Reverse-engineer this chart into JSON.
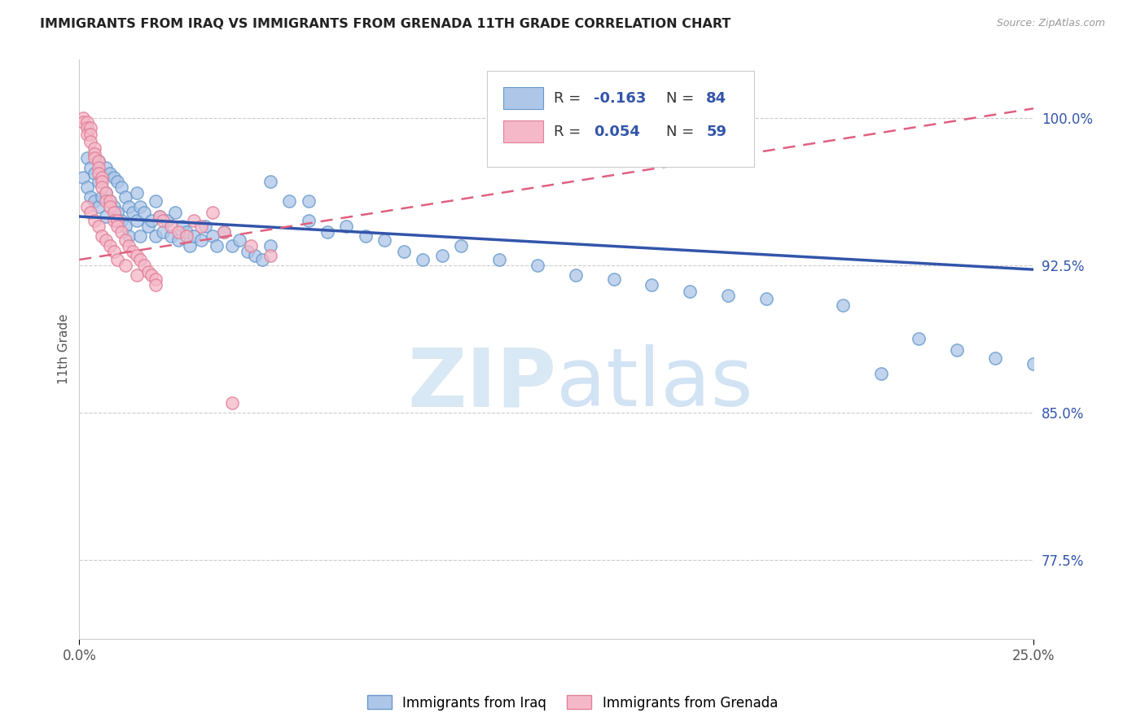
{
  "title": "IMMIGRANTS FROM IRAQ VS IMMIGRANTS FROM GRENADA 11TH GRADE CORRELATION CHART",
  "source": "Source: ZipAtlas.com",
  "ylabel": "11th Grade",
  "ytick_labels": [
    "77.5%",
    "85.0%",
    "92.5%",
    "100.0%"
  ],
  "ytick_values": [
    0.775,
    0.85,
    0.925,
    1.0
  ],
  "xlim": [
    0.0,
    0.25
  ],
  "ylim": [
    0.735,
    1.03
  ],
  "xtick_positions": [
    0.0,
    0.25
  ],
  "xtick_labels": [
    "0.0%",
    "25.0%"
  ],
  "color_iraq": "#aec6e8",
  "color_iraq_edge": "#6699cc",
  "color_iraq_line": "#3355aa",
  "color_grenada": "#f5b8c8",
  "color_grenada_edge": "#e08098",
  "color_grenada_line": "#e06080",
  "watermark_zip": "ZIP",
  "watermark_atlas": "atlas",
  "watermark_color": "#d8e8f5",
  "iraq_line_x0": 0.0,
  "iraq_line_y0": 0.95,
  "iraq_line_x1": 0.25,
  "iraq_line_y1": 0.923,
  "grenada_line_x0": 0.0,
  "grenada_line_y0": 0.928,
  "grenada_line_x1": 0.25,
  "grenada_line_y1": 1.005,
  "iraq_x": [
    0.001,
    0.002,
    0.002,
    0.003,
    0.003,
    0.004,
    0.004,
    0.005,
    0.005,
    0.005,
    0.006,
    0.006,
    0.007,
    0.007,
    0.007,
    0.008,
    0.008,
    0.009,
    0.009,
    0.01,
    0.01,
    0.011,
    0.011,
    0.012,
    0.012,
    0.013,
    0.013,
    0.014,
    0.015,
    0.015,
    0.016,
    0.016,
    0.017,
    0.018,
    0.019,
    0.02,
    0.02,
    0.021,
    0.022,
    0.023,
    0.024,
    0.025,
    0.026,
    0.027,
    0.028,
    0.029,
    0.03,
    0.032,
    0.033,
    0.035,
    0.036,
    0.038,
    0.04,
    0.042,
    0.044,
    0.046,
    0.048,
    0.05,
    0.055,
    0.06,
    0.065,
    0.07,
    0.075,
    0.08,
    0.085,
    0.09,
    0.095,
    0.1,
    0.11,
    0.12,
    0.13,
    0.14,
    0.15,
    0.16,
    0.17,
    0.18,
    0.2,
    0.21,
    0.22,
    0.23,
    0.24,
    0.25,
    0.05,
    0.06
  ],
  "iraq_y": [
    0.97,
    0.98,
    0.965,
    0.975,
    0.96,
    0.972,
    0.958,
    0.968,
    0.978,
    0.955,
    0.97,
    0.96,
    0.975,
    0.962,
    0.95,
    0.972,
    0.958,
    0.97,
    0.955,
    0.968,
    0.952,
    0.965,
    0.948,
    0.96,
    0.945,
    0.955,
    0.94,
    0.952,
    0.962,
    0.948,
    0.955,
    0.94,
    0.952,
    0.945,
    0.948,
    0.958,
    0.94,
    0.95,
    0.942,
    0.948,
    0.94,
    0.952,
    0.938,
    0.945,
    0.942,
    0.935,
    0.94,
    0.938,
    0.945,
    0.94,
    0.935,
    0.942,
    0.935,
    0.938,
    0.932,
    0.93,
    0.928,
    0.935,
    0.958,
    0.948,
    0.942,
    0.945,
    0.94,
    0.938,
    0.932,
    0.928,
    0.93,
    0.935,
    0.928,
    0.925,
    0.92,
    0.918,
    0.915,
    0.912,
    0.91,
    0.908,
    0.905,
    0.87,
    0.888,
    0.882,
    0.878,
    0.875,
    0.968,
    0.958
  ],
  "grenada_x": [
    0.001,
    0.001,
    0.002,
    0.002,
    0.002,
    0.003,
    0.003,
    0.003,
    0.004,
    0.004,
    0.004,
    0.005,
    0.005,
    0.005,
    0.006,
    0.006,
    0.006,
    0.007,
    0.007,
    0.008,
    0.008,
    0.009,
    0.009,
    0.01,
    0.01,
    0.011,
    0.012,
    0.013,
    0.014,
    0.015,
    0.016,
    0.017,
    0.018,
    0.019,
    0.02,
    0.021,
    0.022,
    0.024,
    0.026,
    0.028,
    0.03,
    0.032,
    0.035,
    0.038,
    0.04,
    0.045,
    0.05,
    0.002,
    0.003,
    0.004,
    0.005,
    0.006,
    0.007,
    0.008,
    0.009,
    0.01,
    0.012,
    0.015,
    0.02
  ],
  "grenada_y": [
    1.0,
    0.998,
    0.998,
    0.995,
    0.992,
    0.995,
    0.992,
    0.988,
    0.985,
    0.982,
    0.98,
    0.978,
    0.975,
    0.972,
    0.97,
    0.968,
    0.965,
    0.962,
    0.958,
    0.958,
    0.955,
    0.952,
    0.948,
    0.948,
    0.945,
    0.942,
    0.938,
    0.935,
    0.932,
    0.93,
    0.928,
    0.925,
    0.922,
    0.92,
    0.918,
    0.95,
    0.948,
    0.945,
    0.942,
    0.94,
    0.948,
    0.945,
    0.952,
    0.942,
    0.855,
    0.935,
    0.93,
    0.955,
    0.952,
    0.948,
    0.945,
    0.94,
    0.938,
    0.935,
    0.932,
    0.928,
    0.925,
    0.92,
    0.915
  ]
}
